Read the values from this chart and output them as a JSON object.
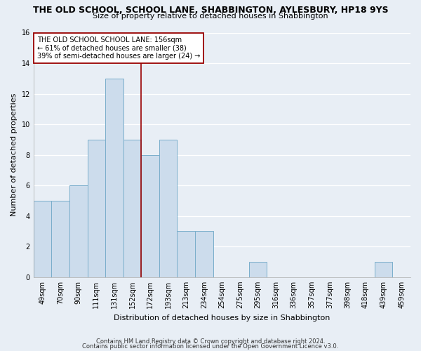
{
  "title": "THE OLD SCHOOL, SCHOOL LANE, SHABBINGTON, AYLESBURY, HP18 9YS",
  "subtitle": "Size of property relative to detached houses in Shabbington",
  "xlabel": "Distribution of detached houses by size in Shabbington",
  "ylabel": "Number of detached properties",
  "bar_labels": [
    "49sqm",
    "70sqm",
    "90sqm",
    "111sqm",
    "131sqm",
    "152sqm",
    "172sqm",
    "193sqm",
    "213sqm",
    "234sqm",
    "254sqm",
    "275sqm",
    "295sqm",
    "316sqm",
    "336sqm",
    "357sqm",
    "377sqm",
    "398sqm",
    "418sqm",
    "439sqm",
    "459sqm"
  ],
  "bar_values": [
    5,
    5,
    6,
    9,
    13,
    9,
    8,
    9,
    3,
    3,
    0,
    0,
    1,
    0,
    0,
    0,
    0,
    0,
    0,
    1,
    0
  ],
  "bar_color": "#ccdcec",
  "bar_edge_color": "#7aaecb",
  "reference_line_x": 5.5,
  "reference_line_color": "#990000",
  "annotation_line1": "THE OLD SCHOOL SCHOOL LANE: 156sqm",
  "annotation_line2": "← 61% of detached houses are smaller (38)",
  "annotation_line3": "39% of semi-detached houses are larger (24) →",
  "annotation_box_facecolor": "#ffffff",
  "annotation_box_edgecolor": "#990000",
  "ylim": [
    0,
    16
  ],
  "yticks": [
    0,
    2,
    4,
    6,
    8,
    10,
    12,
    14,
    16
  ],
  "footer_line1": "Contains HM Land Registry data © Crown copyright and database right 2024.",
  "footer_line2": "Contains public sector information licensed under the Open Government Licence v3.0.",
  "bg_color": "#e8eef5",
  "plot_bg_color": "#e8eef5",
  "grid_color": "#ffffff",
  "title_fontsize": 9,
  "subtitle_fontsize": 8,
  "axis_label_fontsize": 8,
  "tick_fontsize": 7,
  "annotation_fontsize": 7,
  "footer_fontsize": 6
}
